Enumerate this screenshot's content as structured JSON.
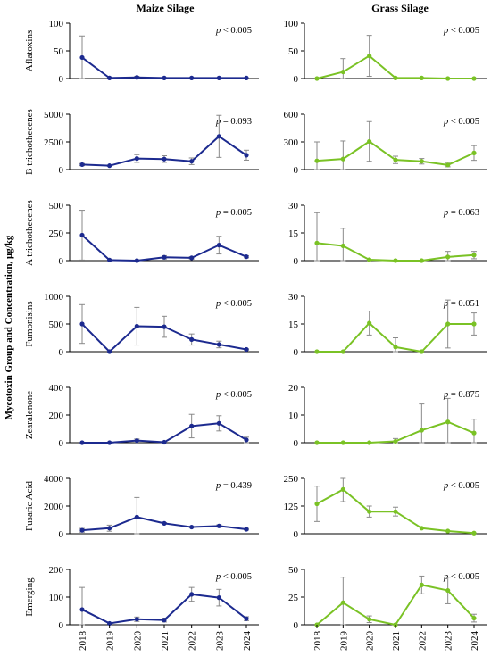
{
  "figure": {
    "y_axis_label": "Mycotoxin Group and Concentration, μg/kg",
    "columns": [
      "Maize Silage",
      "Grass Silage"
    ],
    "x_ticks": [
      "2018",
      "2019",
      "2020",
      "2021",
      "2022",
      "2023",
      "2024"
    ],
    "colors": {
      "maize": "#1c2a8f",
      "grass": "#7ac225",
      "error_bar": "#8a8a8a",
      "axis": "#000000"
    }
  },
  "chart_data": [
    {
      "type": "line",
      "row": "Aflatoxins",
      "column": "Maize Silage",
      "x": [
        "2018",
        "2019",
        "2020",
        "2021",
        "2022",
        "2023",
        "2024"
      ],
      "y": [
        38,
        1,
        2,
        1,
        1,
        1,
        1
      ],
      "err": [
        39,
        0,
        2,
        0,
        0,
        0,
        0
      ],
      "ylim": [
        0,
        100
      ],
      "yticks": [
        "0",
        "50",
        "100"
      ],
      "p_prefix": "p",
      "p_value": " < 0.005"
    },
    {
      "type": "line",
      "row": "Aflatoxins",
      "column": "Grass Silage",
      "x": [
        "2018",
        "2019",
        "2020",
        "2021",
        "2022",
        "2023",
        "2024"
      ],
      "y": [
        0,
        12,
        41,
        1,
        1,
        0,
        0
      ],
      "err": [
        0,
        24,
        37,
        0,
        0,
        0,
        0
      ],
      "ylim": [
        0,
        100
      ],
      "yticks": [
        "0",
        "50",
        "100"
      ],
      "p_prefix": "p",
      "p_value": " < 0.005"
    },
    {
      "type": "line",
      "row": "B trichothecenes",
      "column": "Maize Silage",
      "x": [
        "2018",
        "2019",
        "2020",
        "2021",
        "2022",
        "2023",
        "2024"
      ],
      "y": [
        450,
        350,
        1000,
        950,
        750,
        3000,
        1300
      ],
      "err": [
        100,
        50,
        350,
        300,
        300,
        1900,
        450
      ],
      "ylim": [
        0,
        5000
      ],
      "yticks": [
        "0",
        "2500",
        "5000"
      ],
      "p_prefix": "p",
      "p_value": " = 0.093"
    },
    {
      "type": "line",
      "row": "B trichothecenes",
      "column": "Grass Silage",
      "x": [
        "2018",
        "2019",
        "2020",
        "2021",
        "2022",
        "2023",
        "2024"
      ],
      "y": [
        95,
        115,
        305,
        105,
        90,
        50,
        180
      ],
      "err": [
        205,
        195,
        215,
        40,
        30,
        20,
        80
      ],
      "ylim": [
        0,
        600
      ],
      "yticks": [
        "0",
        "300",
        "600"
      ],
      "p_prefix": "p",
      "p_value": " < 0.005"
    },
    {
      "type": "line",
      "row": "A trichothecenes",
      "column": "Maize Silage",
      "x": [
        "2018",
        "2019",
        "2020",
        "2021",
        "2022",
        "2023",
        "2024"
      ],
      "y": [
        230,
        5,
        0,
        30,
        25,
        140,
        35
      ],
      "err": [
        225,
        0,
        0,
        15,
        10,
        80,
        10
      ],
      "ylim": [
        0,
        500
      ],
      "yticks": [
        "0",
        "250",
        "500"
      ],
      "p_prefix": "p",
      "p_value": " = 0.005"
    },
    {
      "type": "line",
      "row": "A trichothecenes",
      "column": "Grass Silage",
      "x": [
        "2018",
        "2019",
        "2020",
        "2021",
        "2022",
        "2023",
        "2024"
      ],
      "y": [
        9.5,
        8,
        0.5,
        0,
        0,
        2,
        3
      ],
      "err": [
        16.5,
        9.5,
        0,
        0,
        0,
        3,
        2
      ],
      "ylim": [
        0,
        30
      ],
      "yticks": [
        "0",
        "15",
        "30"
      ],
      "p_prefix": "p",
      "p_value": " = 0.063"
    },
    {
      "type": "line",
      "row": "Fumonisins",
      "column": "Maize Silage",
      "x": [
        "2018",
        "2019",
        "2020",
        "2021",
        "2022",
        "2023",
        "2024"
      ],
      "y": [
        500,
        0,
        460,
        450,
        220,
        130,
        40
      ],
      "err": [
        350,
        0,
        340,
        190,
        100,
        60,
        10
      ],
      "ylim": [
        0,
        1000
      ],
      "yticks": [
        "0",
        "500",
        "1000"
      ],
      "p_prefix": "p",
      "p_value": " < 0.005"
    },
    {
      "type": "line",
      "row": "Fumonisins",
      "column": "Grass Silage",
      "x": [
        "2018",
        "2019",
        "2020",
        "2021",
        "2022",
        "2023",
        "2024"
      ],
      "y": [
        0,
        0,
        15.5,
        2.5,
        0,
        15,
        15
      ],
      "err": [
        0,
        0,
        6.5,
        5,
        0,
        13,
        6
      ],
      "ylim": [
        0,
        30
      ],
      "yticks": [
        "0",
        "15",
        "30"
      ],
      "p_prefix": "p",
      "p_value": " = 0.051"
    },
    {
      "type": "line",
      "row": "Zearalenone",
      "column": "Maize Silage",
      "x": [
        "2018",
        "2019",
        "2020",
        "2021",
        "2022",
        "2023",
        "2024"
      ],
      "y": [
        0,
        0,
        15,
        3,
        120,
        140,
        20
      ],
      "err": [
        0,
        0,
        12,
        0,
        85,
        55,
        20
      ],
      "ylim": [
        0,
        400
      ],
      "yticks": [
        "0",
        "200",
        "400"
      ],
      "p_prefix": "p",
      "p_value": " < 0.005"
    },
    {
      "type": "line",
      "row": "Zearalenone",
      "column": "Grass Silage",
      "x": [
        "2018",
        "2019",
        "2020",
        "2021",
        "2022",
        "2023",
        "2024"
      ],
      "y": [
        0,
        0,
        0,
        0.5,
        4.5,
        7.5,
        3.5
      ],
      "err": [
        0,
        0,
        0,
        1,
        9.5,
        8.5,
        5
      ],
      "ylim": [
        0,
        20
      ],
      "yticks": [
        "0",
        "10",
        "20"
      ],
      "p_prefix": "p",
      "p_value": " = 0.875"
    },
    {
      "type": "line",
      "row": "Fusaric Acid",
      "column": "Maize Silage",
      "x": [
        "2018",
        "2019",
        "2020",
        "2021",
        "2022",
        "2023",
        "2024"
      ],
      "y": [
        250,
        400,
        1200,
        750,
        480,
        560,
        320
      ],
      "err": [
        130,
        220,
        1420,
        50,
        30,
        80,
        60
      ],
      "ylim": [
        0,
        4000
      ],
      "yticks": [
        "0",
        "2000",
        "4000"
      ],
      "p_prefix": "p",
      "p_value": " = 0.439"
    },
    {
      "type": "line",
      "row": "Fusaric Acid",
      "column": "Grass Silage",
      "x": [
        "2018",
        "2019",
        "2020",
        "2021",
        "2022",
        "2023",
        "2024"
      ],
      "y": [
        135,
        200,
        100,
        100,
        25,
        12,
        3
      ],
      "err": [
        80,
        55,
        25,
        20,
        0,
        0,
        0
      ],
      "ylim": [
        0,
        250
      ],
      "yticks": [
        "0",
        "125",
        "250"
      ],
      "p_prefix": "p",
      "p_value": " < 0.005"
    },
    {
      "type": "line",
      "row": "Emerging",
      "column": "Maize Silage",
      "x": [
        "2018",
        "2019",
        "2020",
        "2021",
        "2022",
        "2023",
        "2024"
      ],
      "y": [
        55,
        5,
        20,
        17,
        110,
        98,
        22
      ],
      "err": [
        80,
        0,
        8,
        7,
        25,
        30,
        7
      ],
      "ylim": [
        0,
        200
      ],
      "yticks": [
        "0",
        "100",
        "200"
      ],
      "p_prefix": "p",
      "p_value": " < 0.005"
    },
    {
      "type": "line",
      "row": "Emerging",
      "column": "Grass Silage",
      "x": [
        "2018",
        "2019",
        "2020",
        "2021",
        "2022",
        "2023",
        "2024"
      ],
      "y": [
        0,
        20,
        5,
        0,
        36,
        31,
        6
      ],
      "err": [
        0,
        23,
        3,
        0,
        8,
        12,
        3.5
      ],
      "ylim": [
        0,
        50
      ],
      "yticks": [
        "0",
        "25",
        "50"
      ],
      "p_prefix": "p",
      "p_value": " < 0.005"
    }
  ]
}
